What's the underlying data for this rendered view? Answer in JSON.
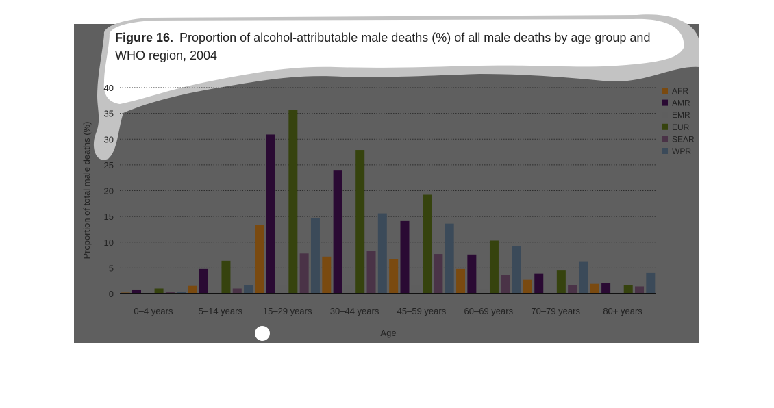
{
  "figure": {
    "label": "Figure 16.",
    "title_line1": "Proportion of alcohol-attributable male deaths (%) of all male deaths by age group and",
    "title_line2": "WHO region, 2004"
  },
  "chart_data": {
    "type": "bar",
    "title": "Figure 16. Proportion of alcohol-attributable male deaths (%) of all male deaths by age group and WHO region, 2004",
    "xlabel": "Age",
    "ylabel": "Proportion of total male deaths (%)",
    "ylim": [
      0,
      40
    ],
    "yticks": [
      "0",
      "5",
      "10",
      "15",
      "20",
      "25",
      "30",
      "35",
      "40"
    ],
    "grid": "horizontal dotted",
    "legend_position": "right",
    "categories": [
      "0–4 years",
      "5–14 years",
      "15–29 years",
      "30–44 years",
      "45–59 years",
      "60–69 years",
      "70–79 years",
      "80+ years"
    ],
    "series": [
      {
        "name": "AFR",
        "color": "#7a4a10",
        "values": [
          0.2,
          1.5,
          13.3,
          7.2,
          6.7,
          4.8,
          2.7,
          1.9
        ]
      },
      {
        "name": "AMR",
        "color": "#2a0a33",
        "values": [
          0.8,
          4.8,
          30.9,
          23.9,
          14.1,
          7.6,
          3.9,
          2.0
        ]
      },
      {
        "name": "EMR",
        "color": "#5e5e5e",
        "values": [
          0.1,
          0.3,
          1.7,
          1.6,
          1.6,
          0.9,
          0.4,
          0.3
        ]
      },
      {
        "name": "EUR",
        "color": "#36430e",
        "values": [
          1.0,
          6.4,
          35.7,
          27.9,
          19.2,
          10.3,
          4.5,
          1.7
        ]
      },
      {
        "name": "SEAR",
        "color": "#4a3347",
        "values": [
          0.3,
          1.0,
          7.8,
          8.3,
          7.7,
          3.6,
          1.6,
          1.4
        ]
      },
      {
        "name": "WPR",
        "color": "#3b4a59",
        "values": [
          0.4,
          1.7,
          14.7,
          15.6,
          13.6,
          9.2,
          6.3,
          4.0
        ]
      }
    ]
  }
}
